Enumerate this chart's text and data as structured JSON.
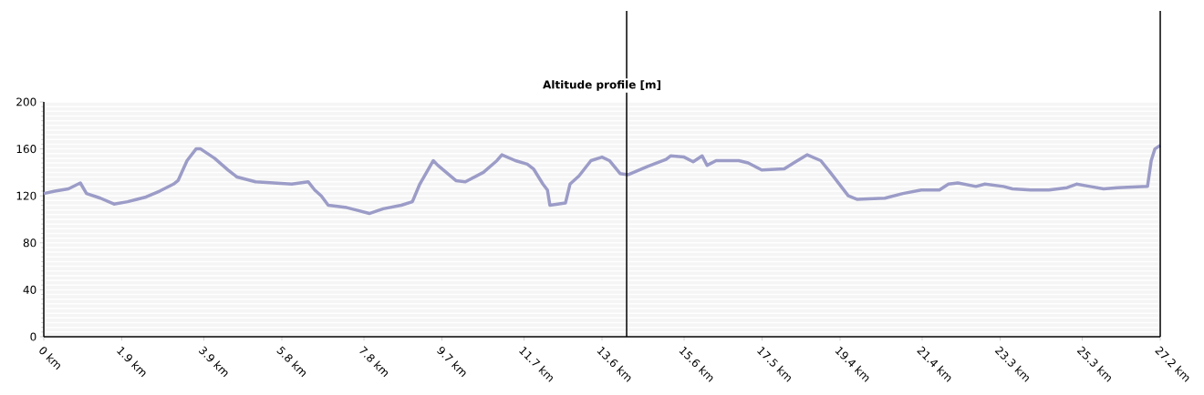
{
  "chart_data": {
    "type": "line",
    "title": "Altitude profile [m]",
    "series": [
      {
        "color": "#9c9cc8",
        "x": [
          0,
          0.27,
          0.6,
          0.89,
          1.04,
          1.38,
          1.71,
          2.04,
          2.27,
          2.49,
          2.82,
          3.16,
          3.27,
          3.49,
          3.71,
          3.82,
          4.16,
          4.49,
          4.71,
          5.16,
          5.6,
          6.04,
          6.44,
          6.6,
          6.76,
          6.93,
          7.38,
          7.6,
          7.93,
          8.27,
          8.71,
          8.98,
          9.16,
          9.49,
          9.6,
          10.04,
          10.27,
          10.71,
          11.04,
          11.16,
          11.49,
          11.78,
          11.93,
          12.16,
          12.27,
          12.33,
          12.71,
          12.82,
          13.04,
          13.33,
          13.6,
          13.78,
          14.04,
          14.24,
          14.71,
          15.16,
          15.27,
          15.6,
          15.82,
          16.04,
          16.16,
          16.38,
          16.93,
          17.16,
          17.49,
          18.04,
          18.27,
          18.6,
          18.93,
          19.16,
          19.38,
          19.6,
          19.82,
          20.49,
          20.93,
          21.38,
          21.82,
          22.04,
          22.27,
          22.71,
          22.93,
          23.38,
          23.6,
          24.04,
          24.49,
          24.93,
          25.16,
          25.49,
          25.82,
          26.16,
          26.89,
          26.98,
          27.07,
          27.2
        ],
        "values": [
          122,
          124,
          126,
          131,
          122,
          118,
          113,
          115,
          117,
          119,
          124,
          130,
          133,
          150,
          160,
          160,
          152,
          142,
          136,
          132,
          131,
          130,
          132,
          125,
          120,
          112,
          110,
          108,
          105,
          109,
          112,
          115,
          130,
          150,
          146,
          133,
          132,
          140,
          150,
          155,
          150,
          147,
          143,
          130,
          125,
          112,
          114,
          130,
          137,
          150,
          153,
          150,
          139,
          138,
          145,
          151,
          154,
          153,
          149,
          154,
          146,
          150,
          150,
          148,
          142,
          143,
          148,
          155,
          150,
          140,
          130,
          120,
          117,
          118,
          122,
          125,
          125,
          130,
          131,
          128,
          130,
          128,
          126,
          125,
          125,
          127,
          130,
          128,
          126,
          127,
          128,
          150,
          160,
          163
        ]
      }
    ],
    "xlim": [
      0,
      27.2
    ],
    "ylim": [
      0,
      200
    ],
    "xticks": [
      {
        "value": 0,
        "label": "0 km"
      },
      {
        "value": 1.9,
        "label": "1.9 km"
      },
      {
        "value": 3.9,
        "label": "3.9 km"
      },
      {
        "value": 5.8,
        "label": "5.8 km"
      },
      {
        "value": 7.8,
        "label": "7.8 km"
      },
      {
        "value": 9.7,
        "label": "9.7 km"
      },
      {
        "value": 11.7,
        "label": "11.7 km"
      },
      {
        "value": 13.6,
        "label": "13.6 km"
      },
      {
        "value": 15.6,
        "label": "15.6 km"
      },
      {
        "value": 17.5,
        "label": "17.5 km"
      },
      {
        "value": 19.4,
        "label": "19.4 km"
      },
      {
        "value": 21.4,
        "label": "21.4 km"
      },
      {
        "value": 23.3,
        "label": "23.3 km"
      },
      {
        "value": 25.3,
        "label": "25.3 km"
      },
      {
        "value": 27.2,
        "label": "27.2 km"
      }
    ],
    "yticks": [
      0,
      40,
      80,
      120,
      160,
      200
    ],
    "ref_lines": [
      {
        "axis": "x",
        "value": 14.2
      },
      {
        "axis": "x",
        "value": 27.2
      }
    ],
    "grid": "y",
    "marker": "none",
    "line_style": "solid"
  }
}
